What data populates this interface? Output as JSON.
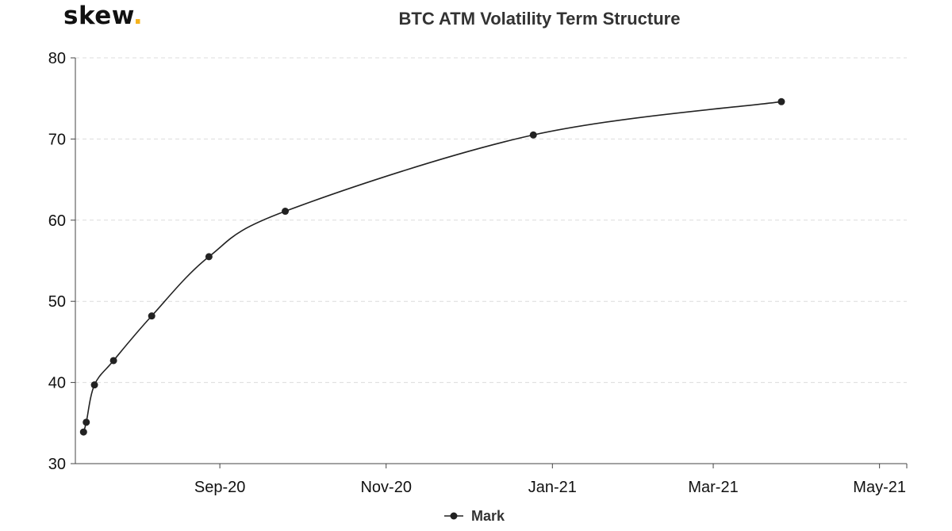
{
  "brand": {
    "name": "skew",
    "dot": "."
  },
  "chart_data": {
    "type": "line",
    "title": "BTC ATM Volatility Term Structure",
    "xlabel": "",
    "ylabel": "",
    "ylim": [
      30,
      80
    ],
    "yticks": [
      30,
      40,
      50,
      60,
      70,
      80
    ],
    "xlim": [
      "2020-07-10",
      "2021-05-11"
    ],
    "xticks": [
      {
        "date": "2020-09-01",
        "label": "Sep-20"
      },
      {
        "date": "2020-11-01",
        "label": "Nov-20"
      },
      {
        "date": "2021-01-01",
        "label": "Jan-21"
      },
      {
        "date": "2021-03-01",
        "label": "Mar-21"
      },
      {
        "date": "2021-05-01",
        "label": "May-21"
      }
    ],
    "grid": true,
    "legend_position": "bottom-center",
    "series": [
      {
        "name": "Mark",
        "color": "#222222",
        "points": [
          {
            "x": "2020-07-13",
            "y": 33.9
          },
          {
            "x": "2020-07-14",
            "y": 35.1
          },
          {
            "x": "2020-07-17",
            "y": 39.7
          },
          {
            "x": "2020-07-24",
            "y": 42.7
          },
          {
            "x": "2020-08-07",
            "y": 48.2
          },
          {
            "x": "2020-08-28",
            "y": 55.5
          },
          {
            "x": "2020-09-25",
            "y": 61.1
          },
          {
            "x": "2020-12-25",
            "y": 70.5
          },
          {
            "x": "2021-03-26",
            "y": 74.6
          }
        ]
      }
    ]
  }
}
